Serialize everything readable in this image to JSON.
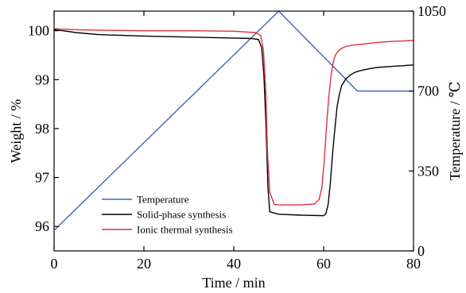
{
  "chart_data": {
    "type": "line",
    "xlabel": "Time / min",
    "ylabel_left": "Weight / %",
    "ylabel_right": "Temperature / ℃",
    "xlim": [
      0,
      80
    ],
    "ylim_left": [
      95.5,
      100.4
    ],
    "ylim_right": [
      0,
      1050
    ],
    "x_ticks": [
      0,
      20,
      40,
      60,
      80
    ],
    "y_left_ticks": [
      96,
      97,
      98,
      99,
      100
    ],
    "y_right_ticks": [
      0,
      350,
      700,
      1050
    ],
    "x_tick_labels": [
      "0",
      "20",
      "40",
      "60",
      "80"
    ],
    "y_left_tick_labels": [
      "96",
      "97",
      "98",
      "99",
      "100"
    ],
    "y_right_tick_labels": [
      "0",
      "350",
      "700",
      "1050"
    ],
    "legend_position": "bottom-left",
    "grid": false,
    "series": [
      {
        "name": "Temperature",
        "axis": "right",
        "color": "#3f63b5",
        "x": [
          0,
          50,
          67.5,
          80
        ],
        "y": [
          90,
          1050,
          700,
          700
        ]
      },
      {
        "name": "Solid-phase synthesis",
        "axis": "left",
        "color": "#000000",
        "x": [
          0,
          2,
          5,
          10,
          20,
          30,
          40,
          44,
          45.5,
          46.2,
          46.7,
          47.2,
          47.6,
          48,
          50,
          55,
          60,
          60.5,
          61,
          61.5,
          62,
          62.5,
          63,
          63.5,
          64,
          65,
          66,
          67,
          68,
          70,
          72,
          75,
          80
        ],
        "y": [
          100.02,
          100.0,
          99.96,
          99.92,
          99.89,
          99.87,
          99.85,
          99.84,
          99.82,
          99.65,
          99.1,
          98.0,
          96.8,
          96.3,
          96.25,
          96.23,
          96.22,
          96.26,
          96.45,
          96.9,
          97.5,
          98.0,
          98.45,
          98.7,
          98.88,
          99.02,
          99.1,
          99.15,
          99.18,
          99.22,
          99.25,
          99.27,
          99.3
        ]
      },
      {
        "name": "Ionic thermal synthesis",
        "axis": "left",
        "color": "#e0303a",
        "x": [
          0,
          5,
          10,
          20,
          30,
          40,
          45,
          46,
          46.6,
          47.1,
          47.5,
          48,
          49,
          50,
          55,
          58,
          59,
          59.6,
          60.1,
          60.6,
          61.1,
          61.6,
          62.1,
          62.6,
          63.2,
          64,
          65,
          66,
          68,
          70,
          72,
          75,
          80
        ],
        "y": [
          100.04,
          100.02,
          100.01,
          100.0,
          100.0,
          99.99,
          99.96,
          99.9,
          99.6,
          98.8,
          97.5,
          96.7,
          96.45,
          96.44,
          96.44,
          96.46,
          96.55,
          96.8,
          97.3,
          98.0,
          98.6,
          99.05,
          99.35,
          99.5,
          99.58,
          99.64,
          99.68,
          99.7,
          99.72,
          99.74,
          99.76,
          99.78,
          99.8
        ]
      }
    ]
  }
}
